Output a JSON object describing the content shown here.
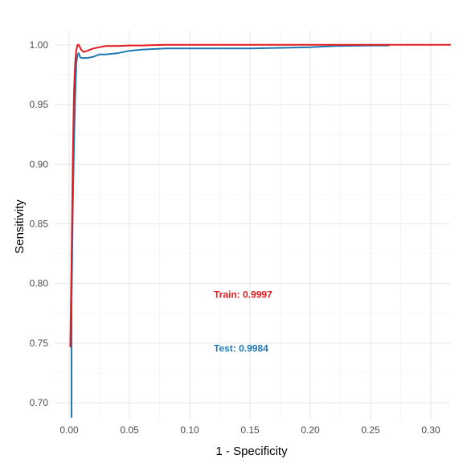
{
  "chart_data": {
    "type": "line",
    "title": "",
    "xlabel": "1 - Specificity",
    "ylabel": "Sensitivity",
    "xlim": [
      -0.012,
      0.316
    ],
    "ylim": [
      0.686,
      1.012
    ],
    "x_ticks": [
      0.0,
      0.05,
      0.1,
      0.15,
      0.2,
      0.25,
      0.3
    ],
    "x_tick_labels": [
      "0.00",
      "0.05",
      "0.10",
      "0.15",
      "0.20",
      "0.25",
      "0.30"
    ],
    "y_ticks": [
      0.7,
      0.75,
      0.8,
      0.85,
      0.9,
      0.95,
      1.0
    ],
    "y_tick_labels": [
      "0.70",
      "0.75",
      "0.80",
      "0.85",
      "0.90",
      "0.95",
      "1.00"
    ],
    "grid": true,
    "legend": "none",
    "series": [
      {
        "name": "Train",
        "color": "#e41a1c",
        "x": [
          0.001,
          0.002,
          0.003,
          0.004,
          0.005,
          0.006,
          0.007,
          0.008,
          0.009,
          0.01,
          0.012,
          0.015,
          0.02,
          0.025,
          0.03,
          0.035,
          0.04,
          0.05,
          0.06,
          0.07,
          0.08,
          0.1,
          0.15,
          0.2,
          0.25,
          0.3,
          0.316
        ],
        "y": [
          0.747,
          0.82,
          0.9,
          0.96,
          0.985,
          0.996,
          1.0,
          1.0,
          0.998,
          0.996,
          0.994,
          0.995,
          0.997,
          0.998,
          0.999,
          0.999,
          0.999,
          0.9995,
          0.9995,
          0.9998,
          1.0,
          1.0,
          1.0,
          1.0,
          1.0,
          1.0,
          1.0
        ]
      },
      {
        "name": "Test",
        "color": "#1f78b4",
        "x": [
          0.002,
          0.002,
          0.003,
          0.004,
          0.005,
          0.006,
          0.007,
          0.008,
          0.009,
          0.01,
          0.012,
          0.015,
          0.02,
          0.025,
          0.03,
          0.04,
          0.05,
          0.06,
          0.08,
          0.1,
          0.15,
          0.2,
          0.22,
          0.25,
          0.265
        ],
        "y": [
          0.688,
          0.78,
          0.86,
          0.915,
          0.955,
          0.985,
          0.992,
          0.993,
          0.99,
          0.989,
          0.989,
          0.989,
          0.99,
          0.992,
          0.992,
          0.993,
          0.995,
          0.996,
          0.997,
          0.997,
          0.997,
          0.998,
          0.999,
          0.9995,
          0.9995
        ]
      }
    ],
    "annotations": [
      {
        "text": "Train: 0.9997",
        "x": 0.12,
        "y": 0.788,
        "color": "#e41a1c"
      },
      {
        "text": "Test: 0.9984",
        "x": 0.12,
        "y": 0.743,
        "color": "#1f78b4"
      }
    ]
  }
}
